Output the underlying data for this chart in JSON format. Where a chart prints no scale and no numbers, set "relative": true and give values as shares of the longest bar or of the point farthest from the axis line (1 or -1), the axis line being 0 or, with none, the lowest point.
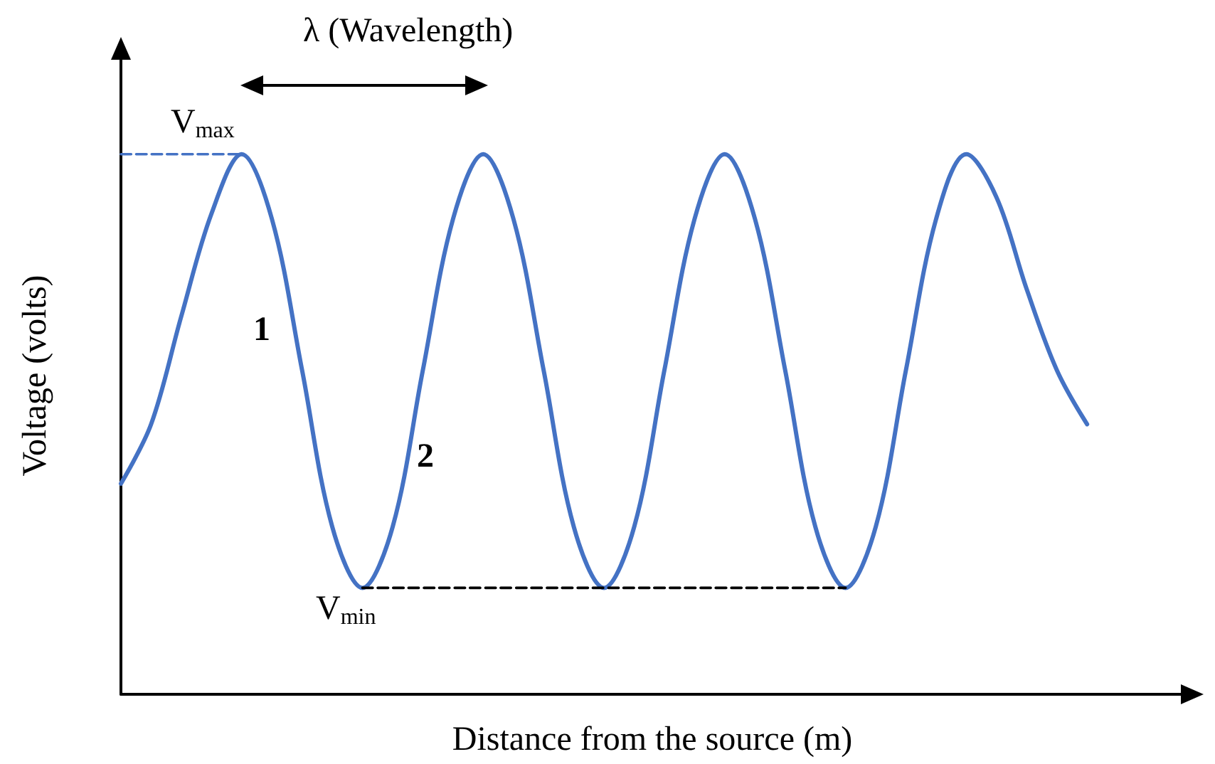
{
  "chart_data": {
    "type": "line",
    "relative": true,
    "xlabel": "Distance from the source (m)",
    "ylabel": "Voltage (volts)",
    "categories": [
      null,
      null,
      null,
      null,
      null,
      null,
      null,
      null,
      null,
      null,
      null,
      null,
      null,
      null,
      null,
      null,
      null,
      null,
      null,
      null,
      null,
      null,
      null,
      null,
      null,
      null,
      null,
      null,
      null,
      null,
      null,
      null,
      null
    ],
    "series": [
      {
        "color": "#4472c4",
        "line_style": "solid",
        "values": [
          0.39,
          0.5,
          0.7,
          0.89,
          1,
          0.88,
          0.6,
          0.31,
          0.197,
          0.31,
          0.6,
          0.88,
          1,
          0.88,
          0.6,
          0.31,
          0.197,
          0.31,
          0.6,
          0.88,
          1,
          0.88,
          0.6,
          0.31,
          0.197,
          0.31,
          0.6,
          0.88,
          1,
          0.92,
          0.75,
          0.6,
          0.5
        ]
      },
      {
        "color": "#4472c4",
        "line_style": "dashed",
        "values": [
          1,
          1,
          1,
          1,
          1,
          null,
          null,
          null,
          null,
          null,
          null,
          null,
          null,
          null,
          null,
          null,
          null,
          null,
          null,
          null,
          null,
          null,
          null,
          null,
          null,
          null,
          null,
          null,
          null,
          null,
          null,
          null,
          null
        ]
      },
      {
        "color": "#000000",
        "line_style": "dashed",
        "values": [
          null,
          null,
          null,
          null,
          null,
          null,
          null,
          null,
          0.197,
          0.197,
          0.197,
          0.197,
          0.197,
          0.197,
          0.197,
          0.197,
          0.197,
          0.197,
          0.197,
          0.197,
          0.197,
          0.197,
          0.197,
          0.197,
          0.197,
          null,
          null,
          null,
          null,
          null,
          null,
          null,
          null
        ]
      }
    ],
    "annotations": [
      "λ (Wavelength)",
      "V$_{max}$",
      "V$_{min}$",
      "1",
      "2"
    ],
    "marker": "none",
    "grid": false
  }
}
